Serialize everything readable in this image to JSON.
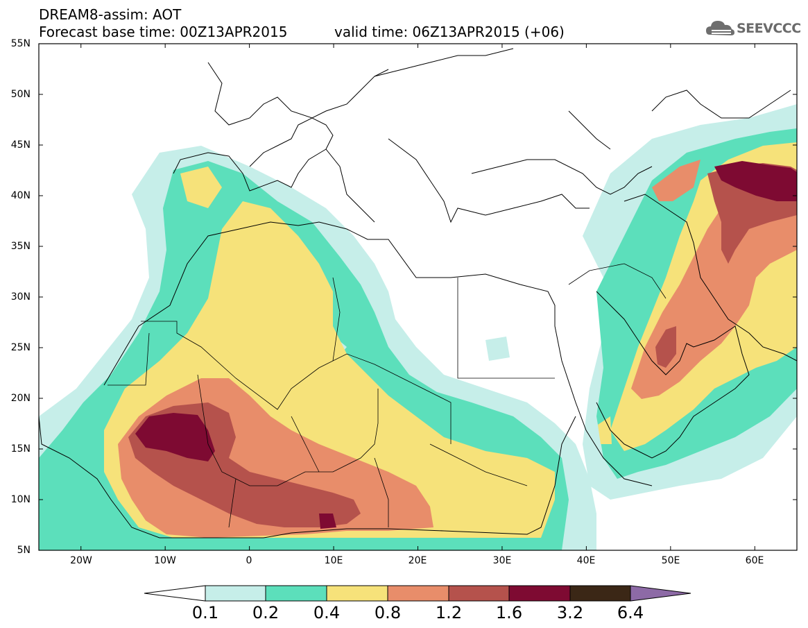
{
  "header": {
    "line1": "DREAM8-assim: AOT",
    "line2": "Forecast base time: 00Z13APR2015",
    "line3": "valid time: 06Z13APR2015 (+06)",
    "logo_text": "SEEVCCC"
  },
  "map": {
    "lat_labels": [
      "55N",
      "50N",
      "45N",
      "40N",
      "35N",
      "30N",
      "25N",
      "20N",
      "15N",
      "10N",
      "5N"
    ],
    "lon_labels": [
      "20W",
      "10W",
      "0",
      "10E",
      "20E",
      "30E",
      "40E",
      "50E",
      "60E"
    ],
    "extent": {
      "lon": [
        -25,
        65
      ],
      "lat": [
        5,
        55
      ]
    }
  },
  "colorbar": {
    "levels": [
      "0.1",
      "0.2",
      "0.4",
      "0.8",
      "1.2",
      "1.6",
      "3.2",
      "6.4"
    ],
    "colors": [
      "#ffffff",
      "#c6eee9",
      "#5cdfbb",
      "#f6e27a",
      "#e88d6a",
      "#b5524c",
      "#7e0a32",
      "#3b2716",
      "#8d6aa6"
    ]
  }
}
